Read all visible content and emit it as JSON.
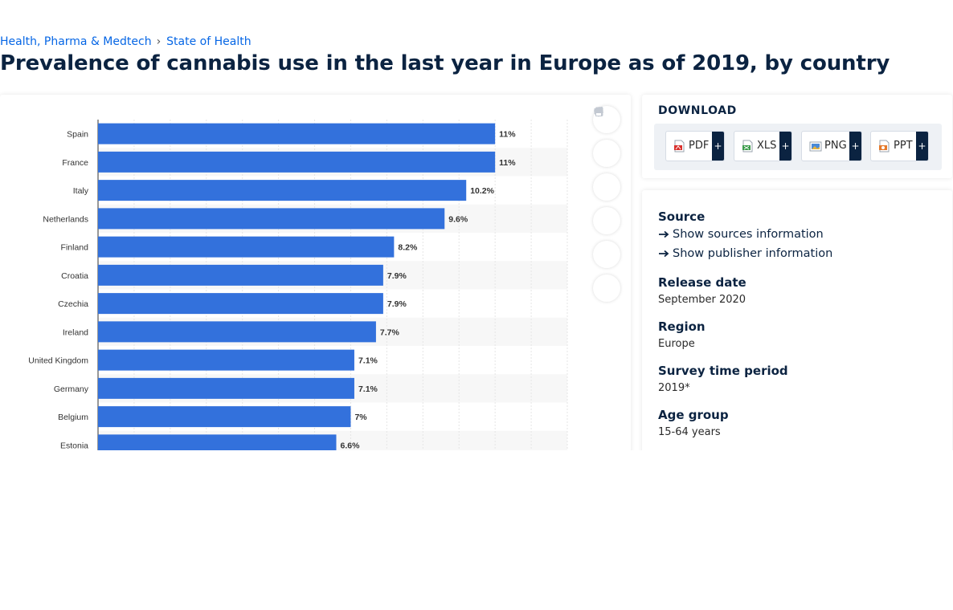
{
  "breadcrumb": [
    "Health, Pharma & Medtech",
    "State of Health"
  ],
  "title": "Prevalence of cannabis use in the last year in Europe as of 2019, by country",
  "toolbar": {
    "icons": [
      "star-icon",
      "bell-icon",
      "gear-icon",
      "share-icon",
      "quote-icon",
      "print-icon"
    ]
  },
  "download": {
    "title": "DOWNLOAD",
    "buttons": [
      "PDF",
      "XLS",
      "PNG",
      "PPT"
    ],
    "plus": "+"
  },
  "info": {
    "source_label": "Source",
    "show_sources": "Show sources information",
    "show_publisher": "Show publisher information",
    "release_label": "Release date",
    "release_value": "September 2020",
    "region_label": "Region",
    "region_value": "Europe",
    "survey_label": "Survey time period",
    "survey_value": "2019*",
    "age_label": "Age group",
    "age_value": "15-64 years"
  },
  "colors": {
    "bar": "#3371dc",
    "title": "#0b2341",
    "link": "#0666e5"
  },
  "chart_data": {
    "type": "bar",
    "orientation": "horizontal",
    "categories": [
      "Spain",
      "France",
      "Italy",
      "Netherlands",
      "Finland",
      "Croatia",
      "Czechia",
      "Ireland",
      "United Kingdom",
      "Germany",
      "Belgium",
      "Estonia"
    ],
    "values": [
      11,
      11,
      10.2,
      9.6,
      8.2,
      7.9,
      7.9,
      7.7,
      7.1,
      7.1,
      7,
      6.6
    ],
    "labels": [
      "11%",
      "11%",
      "10.2%",
      "9.6%",
      "8.2%",
      "7.9%",
      "7.9%",
      "7.7%",
      "7.1%",
      "7.1%",
      "7%",
      "6.6%"
    ],
    "xlim": [
      0,
      13
    ],
    "grid": true
  }
}
